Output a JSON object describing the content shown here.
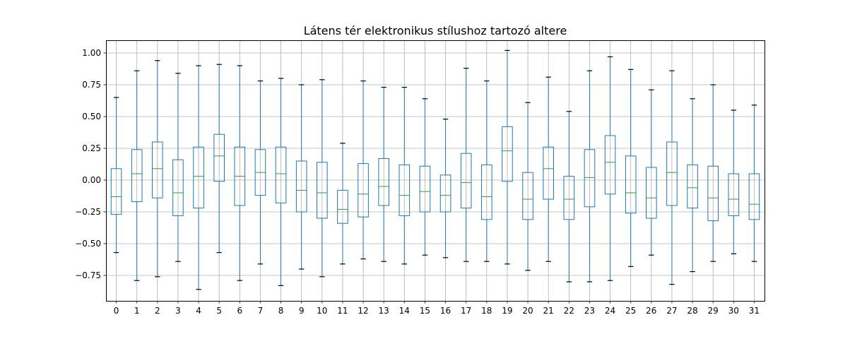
{
  "chart_data": {
    "type": "boxplot",
    "title": "Látens tér elektronikus stílushoz tartozó altere",
    "xlabel": "",
    "ylabel": "",
    "categories": [
      "0",
      "1",
      "2",
      "3",
      "4",
      "5",
      "6",
      "7",
      "8",
      "9",
      "10",
      "11",
      "12",
      "13",
      "14",
      "15",
      "16",
      "17",
      "18",
      "19",
      "20",
      "21",
      "22",
      "23",
      "24",
      "25",
      "26",
      "27",
      "28",
      "29",
      "30",
      "31"
    ],
    "ylim": [
      -0.95,
      1.1
    ],
    "yticks": [
      -0.75,
      -0.5,
      -0.25,
      0.0,
      0.25,
      0.5,
      0.75,
      1.0
    ],
    "ytick_labels": [
      "−0.75",
      "−0.50",
      "−0.25",
      "0.00",
      "0.25",
      "0.50",
      "0.75",
      "1.00"
    ],
    "grid": true,
    "colors": {
      "box": "#1f77b4",
      "median": "#2ca02c",
      "cap": "#000000",
      "grid": "#b0b0b0"
    },
    "boxes": [
      {
        "whislo": -0.57,
        "q1": -0.27,
        "med": -0.13,
        "q3": 0.09,
        "whishi": 0.65
      },
      {
        "whislo": -0.79,
        "q1": -0.17,
        "med": 0.05,
        "q3": 0.24,
        "whishi": 0.86
      },
      {
        "whislo": -0.76,
        "q1": -0.14,
        "med": 0.09,
        "q3": 0.3,
        "whishi": 0.94
      },
      {
        "whislo": -0.64,
        "q1": -0.28,
        "med": -0.1,
        "q3": 0.16,
        "whishi": 0.84
      },
      {
        "whislo": -0.86,
        "q1": -0.22,
        "med": 0.03,
        "q3": 0.26,
        "whishi": 0.9
      },
      {
        "whislo": -0.57,
        "q1": -0.01,
        "med": 0.19,
        "q3": 0.36,
        "whishi": 0.91
      },
      {
        "whislo": -0.79,
        "q1": -0.2,
        "med": 0.03,
        "q3": 0.26,
        "whishi": 0.9
      },
      {
        "whislo": -0.66,
        "q1": -0.12,
        "med": 0.06,
        "q3": 0.24,
        "whishi": 0.78
      },
      {
        "whislo": -0.83,
        "q1": -0.18,
        "med": 0.05,
        "q3": 0.26,
        "whishi": 0.8
      },
      {
        "whislo": -0.7,
        "q1": -0.25,
        "med": -0.08,
        "q3": 0.15,
        "whishi": 0.75
      },
      {
        "whislo": -0.76,
        "q1": -0.3,
        "med": -0.1,
        "q3": 0.14,
        "whishi": 0.79
      },
      {
        "whislo": -0.66,
        "q1": -0.34,
        "med": -0.23,
        "q3": -0.08,
        "whishi": 0.29
      },
      {
        "whislo": -0.62,
        "q1": -0.29,
        "med": -0.11,
        "q3": 0.13,
        "whishi": 0.78
      },
      {
        "whislo": -0.64,
        "q1": -0.2,
        "med": -0.05,
        "q3": 0.17,
        "whishi": 0.73
      },
      {
        "whislo": -0.66,
        "q1": -0.28,
        "med": -0.12,
        "q3": 0.12,
        "whishi": 0.73
      },
      {
        "whislo": -0.59,
        "q1": -0.25,
        "med": -0.09,
        "q3": 0.11,
        "whishi": 0.64
      },
      {
        "whislo": -0.61,
        "q1": -0.25,
        "med": -0.12,
        "q3": 0.04,
        "whishi": 0.48
      },
      {
        "whislo": -0.64,
        "q1": -0.22,
        "med": -0.02,
        "q3": 0.21,
        "whishi": 0.88
      },
      {
        "whislo": -0.64,
        "q1": -0.31,
        "med": -0.13,
        "q3": 0.12,
        "whishi": 0.78
      },
      {
        "whislo": -0.66,
        "q1": -0.01,
        "med": 0.23,
        "q3": 0.42,
        "whishi": 1.02
      },
      {
        "whislo": -0.71,
        "q1": -0.31,
        "med": -0.15,
        "q3": 0.06,
        "whishi": 0.61
      },
      {
        "whislo": -0.64,
        "q1": -0.15,
        "med": 0.09,
        "q3": 0.26,
        "whishi": 0.81
      },
      {
        "whislo": -0.8,
        "q1": -0.31,
        "med": -0.15,
        "q3": 0.03,
        "whishi": 0.54
      },
      {
        "whislo": -0.8,
        "q1": -0.21,
        "med": 0.02,
        "q3": 0.24,
        "whishi": 0.86
      },
      {
        "whislo": -0.79,
        "q1": -0.11,
        "med": 0.14,
        "q3": 0.35,
        "whishi": 0.97
      },
      {
        "whislo": -0.68,
        "q1": -0.26,
        "med": -0.1,
        "q3": 0.19,
        "whishi": 0.87
      },
      {
        "whislo": -0.59,
        "q1": -0.3,
        "med": -0.14,
        "q3": 0.1,
        "whishi": 0.71
      },
      {
        "whislo": -0.82,
        "q1": -0.2,
        "med": 0.06,
        "q3": 0.3,
        "whishi": 0.86
      },
      {
        "whislo": -0.72,
        "q1": -0.22,
        "med": -0.06,
        "q3": 0.12,
        "whishi": 0.64
      },
      {
        "whislo": -0.64,
        "q1": -0.32,
        "med": -0.14,
        "q3": 0.11,
        "whishi": 0.75
      },
      {
        "whislo": -0.58,
        "q1": -0.28,
        "med": -0.15,
        "q3": 0.05,
        "whishi": 0.55
      },
      {
        "whislo": -0.64,
        "q1": -0.31,
        "med": -0.19,
        "q3": 0.05,
        "whishi": 0.59
      }
    ]
  }
}
